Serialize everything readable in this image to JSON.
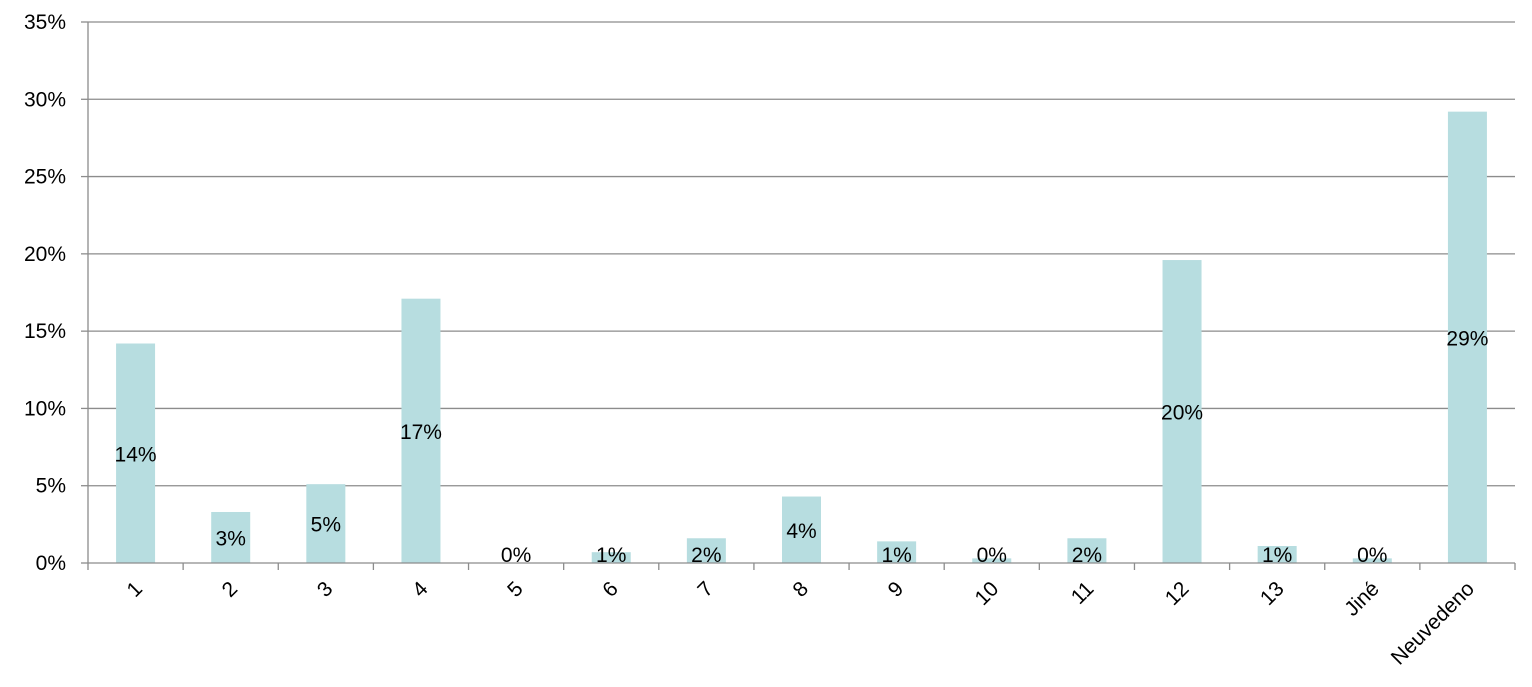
{
  "chart_data": {
    "type": "bar",
    "title": "",
    "xlabel": "",
    "ylabel": "",
    "categories": [
      "1",
      "2",
      "3",
      "4",
      "5",
      "6",
      "7",
      "8",
      "9",
      "10",
      "11",
      "12",
      "13",
      "Jiné",
      "Neuvedeno"
    ],
    "values": [
      14.2,
      3.3,
      5.1,
      17.1,
      0.0,
      0.7,
      1.6,
      4.3,
      1.4,
      0.3,
      1.6,
      19.6,
      1.1,
      0.3,
      29.2
    ],
    "data_labels": [
      "14%",
      "3%",
      "5%",
      "17%",
      "0%",
      "1%",
      "2%",
      "4%",
      "1%",
      "0%",
      "2%",
      "20%",
      "1%",
      "0%",
      "29%"
    ],
    "ylim": [
      0,
      35
    ],
    "y_ticks": [
      0,
      5,
      10,
      15,
      20,
      25,
      30,
      35
    ],
    "y_tick_labels": [
      "0%",
      "5%",
      "10%",
      "15%",
      "20%",
      "25%",
      "30%",
      "35%"
    ],
    "grid": true,
    "legend": "none",
    "bar_color": "#b7dde0",
    "grid_color": "#8c8c8c"
  }
}
